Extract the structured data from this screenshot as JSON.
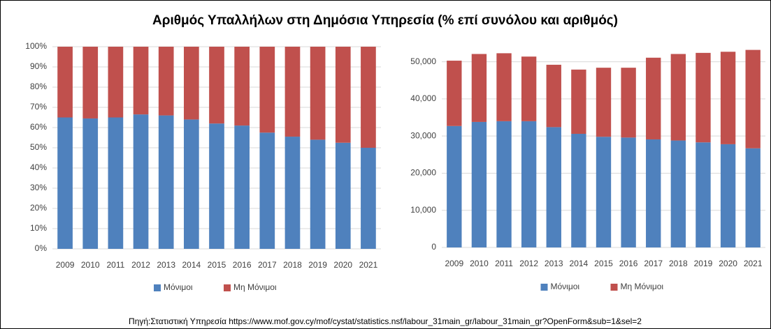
{
  "title": "Αριθμός Υπαλλήλων στη Δημόσια Υπηρεσία (% επί συνόλου και αριθμός)",
  "source": "Πηγή:Στατιστική Υπηρεσία https://www.mof.gov.cy/mof/cystat/statistics.nsf/labour_31main_gr/labour_31main_gr?OpenForm&sub=1&sel=2",
  "chart_data": [
    {
      "type": "bar",
      "stacked": true,
      "grid": true,
      "legend": "bottom",
      "categories": [
        "2009",
        "2010",
        "2011",
        "2012",
        "2013",
        "2014",
        "2015",
        "2016",
        "2017",
        "2018",
        "2019",
        "2020",
        "2021"
      ],
      "series": [
        {
          "name": "Μόνιμοι",
          "color": "#4f81bd",
          "values": [
            65,
            64.5,
            65,
            66.5,
            66,
            64,
            62,
            61,
            57.5,
            55.5,
            54,
            52.5,
            50
          ]
        },
        {
          "name": "Μη Μόνιμοι",
          "color": "#c0504d",
          "values": [
            35,
            35.5,
            35,
            33.5,
            34,
            36,
            38,
            39,
            42.5,
            44.5,
            46,
            47.5,
            50
          ]
        }
      ],
      "ylim": [
        0,
        100
      ],
      "yticks": [
        {
          "value": 0,
          "label": "0%"
        },
        {
          "value": 10,
          "label": "10%"
        },
        {
          "value": 20,
          "label": "20%"
        },
        {
          "value": 30,
          "label": "30%"
        },
        {
          "value": 40,
          "label": "40%"
        },
        {
          "value": 50,
          "label": "50%"
        },
        {
          "value": 60,
          "label": "60%"
        },
        {
          "value": 70,
          "label": "70%"
        },
        {
          "value": 80,
          "label": "80%"
        },
        {
          "value": 90,
          "label": "90%"
        },
        {
          "value": 100,
          "label": "100%"
        }
      ]
    },
    {
      "type": "bar",
      "stacked": true,
      "grid": true,
      "legend": "bottom",
      "categories": [
        "2009",
        "2010",
        "2011",
        "2012",
        "2013",
        "2014",
        "2015",
        "2016",
        "2017",
        "2018",
        "2019",
        "2020",
        "2021"
      ],
      "series": [
        {
          "name": "Μόνιμοι",
          "color": "#4f81bd",
          "values": [
            32700,
            33800,
            34000,
            34000,
            32400,
            30600,
            29800,
            29600,
            29100,
            28800,
            28300,
            27800,
            26700
          ]
        },
        {
          "name": "Μη Μόνιμοι",
          "color": "#c0504d",
          "values": [
            17600,
            18300,
            18300,
            17400,
            16800,
            17300,
            18600,
            18800,
            22000,
            23300,
            24100,
            24900,
            26500
          ]
        }
      ],
      "ylim": [
        0,
        55000
      ],
      "yticks": [
        0,
        {
          "value": 10000,
          "label": "10,000"
        },
        {
          "value": 20000,
          "label": "20,000"
        },
        {
          "value": 30000,
          "label": "30,000"
        },
        {
          "value": 40000,
          "label": "40,000"
        },
        {
          "value": 50000,
          "label": "50,000"
        }
      ]
    }
  ]
}
